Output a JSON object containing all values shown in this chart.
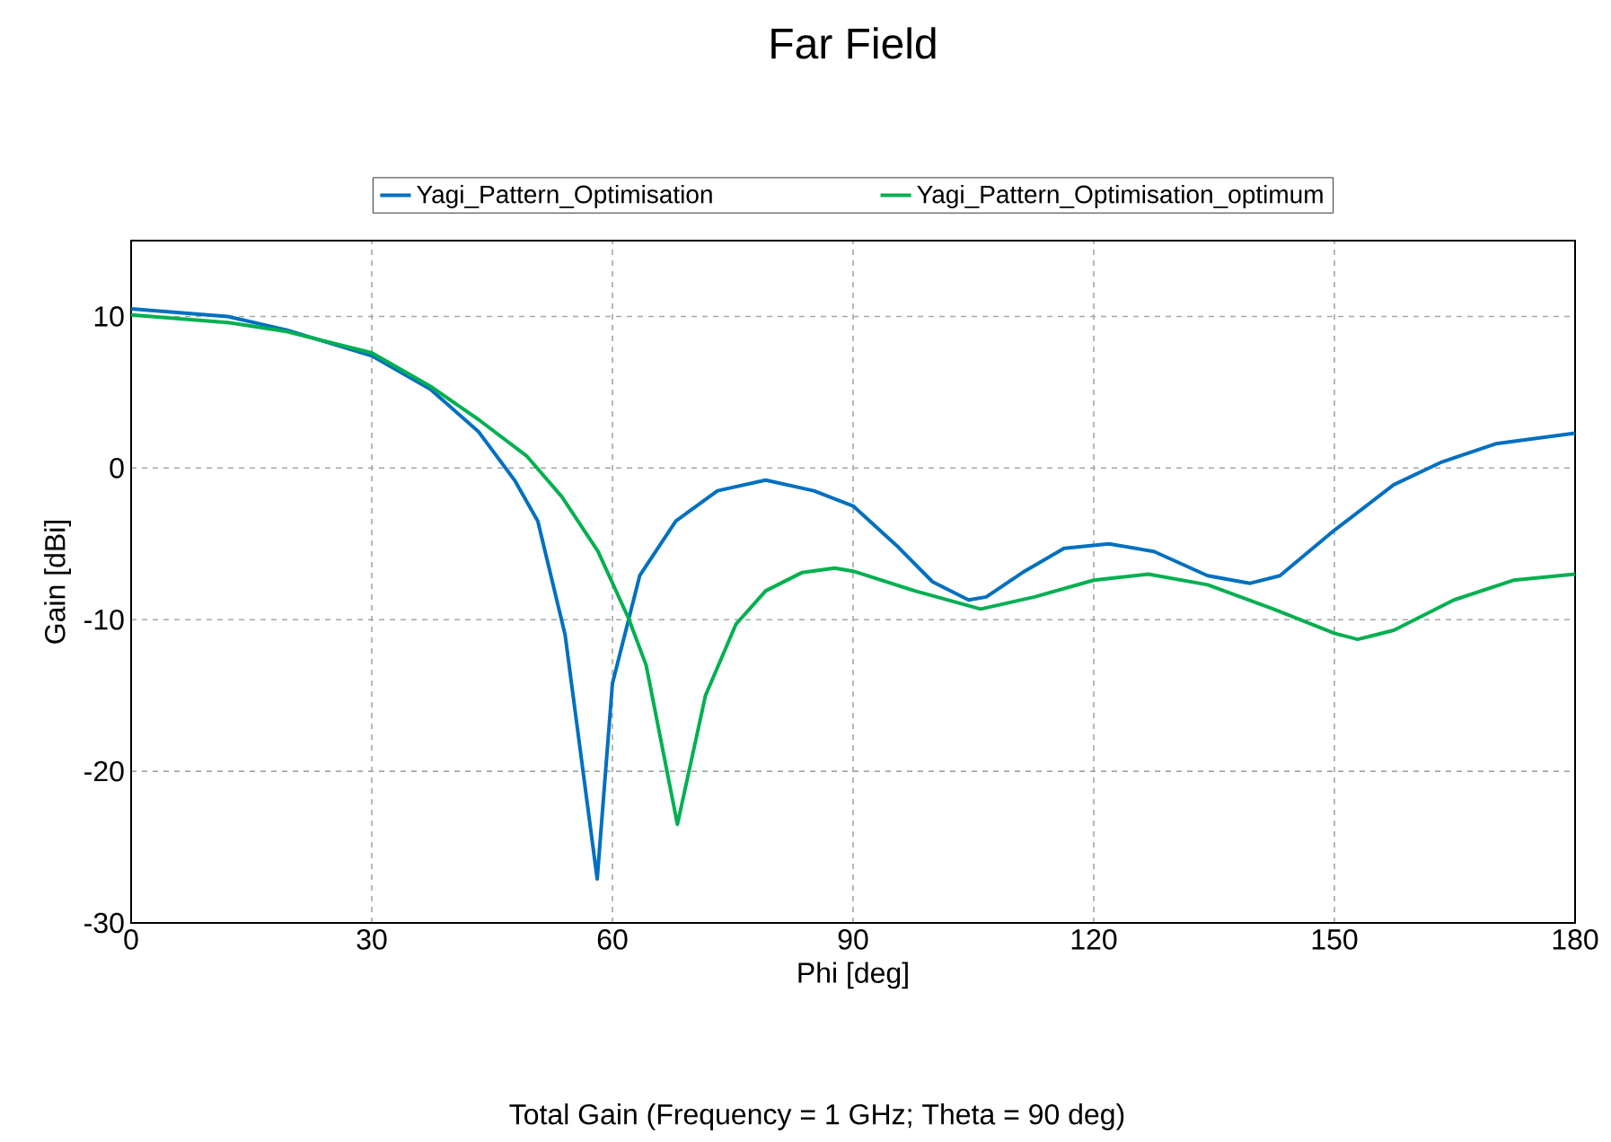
{
  "chart_data": {
    "type": "line",
    "title": "Far Field",
    "xlabel": "Phi [deg]",
    "ylabel": "Gain [dBi]",
    "annotations": [
      "Total Gain (Frequency = 1 GHz; Theta = 90 deg)"
    ],
    "xlim": [
      0,
      180
    ],
    "ylim": [
      -30,
      15
    ],
    "xticks": [
      0,
      30,
      60,
      90,
      120,
      150,
      180
    ],
    "yticks": [
      -30,
      -20,
      -10,
      0,
      10
    ],
    "grid": true,
    "legend": "top",
    "series": [
      {
        "name": "Yagi_Pattern_Optimisation",
        "color": "#0070c0",
        "x": [
          0,
          12,
          19.4,
          30,
          37.3,
          43.3,
          47.8,
          50.7,
          54.1,
          58.1,
          60,
          63.4,
          67.9,
          73.1,
          79.1,
          85.1,
          90,
          95.4,
          99.9,
          104.4,
          106.6,
          111.1,
          116.3,
          121.9,
          127.5,
          134.2,
          139.5,
          143.2,
          150,
          157.4,
          163.4,
          170.1,
          180
        ],
        "values": [
          10.5,
          10.0,
          9.1,
          7.4,
          5.2,
          2.4,
          -0.8,
          -3.5,
          -11.0,
          -27.1,
          -14.2,
          -7.1,
          -3.5,
          -1.5,
          -0.8,
          -1.5,
          -2.5,
          -5.1,
          -7.5,
          -8.7,
          -8.5,
          -6.9,
          -5.3,
          -5.0,
          -5.5,
          -7.1,
          -7.6,
          -7.1,
          -4.1,
          -1.1,
          0.4,
          1.6,
          2.3
        ]
      },
      {
        "name": "Yagi_Pattern_Optimisation_optimum",
        "color": "#00b050",
        "x": [
          0,
          12,
          19.4,
          30,
          37.3,
          43.3,
          49.3,
          53.7,
          58.2,
          62,
          64.2,
          68.1,
          71.6,
          75.4,
          79.1,
          83.6,
          87.7,
          90,
          97.7,
          105.9,
          112.6,
          120,
          126.8,
          134.2,
          142.4,
          150,
          152.9,
          157.4,
          164.9,
          172.3,
          180
        ],
        "values": [
          10.1,
          9.6,
          9.0,
          7.6,
          5.4,
          3.2,
          0.8,
          -1.9,
          -5.5,
          -9.9,
          -13.0,
          -23.5,
          -15.0,
          -10.3,
          -8.1,
          -6.9,
          -6.6,
          -6.8,
          -8.1,
          -9.3,
          -8.5,
          -7.4,
          -7.0,
          -7.7,
          -9.3,
          -10.9,
          -11.3,
          -10.7,
          -8.7,
          -7.4,
          -7.0
        ]
      }
    ]
  }
}
